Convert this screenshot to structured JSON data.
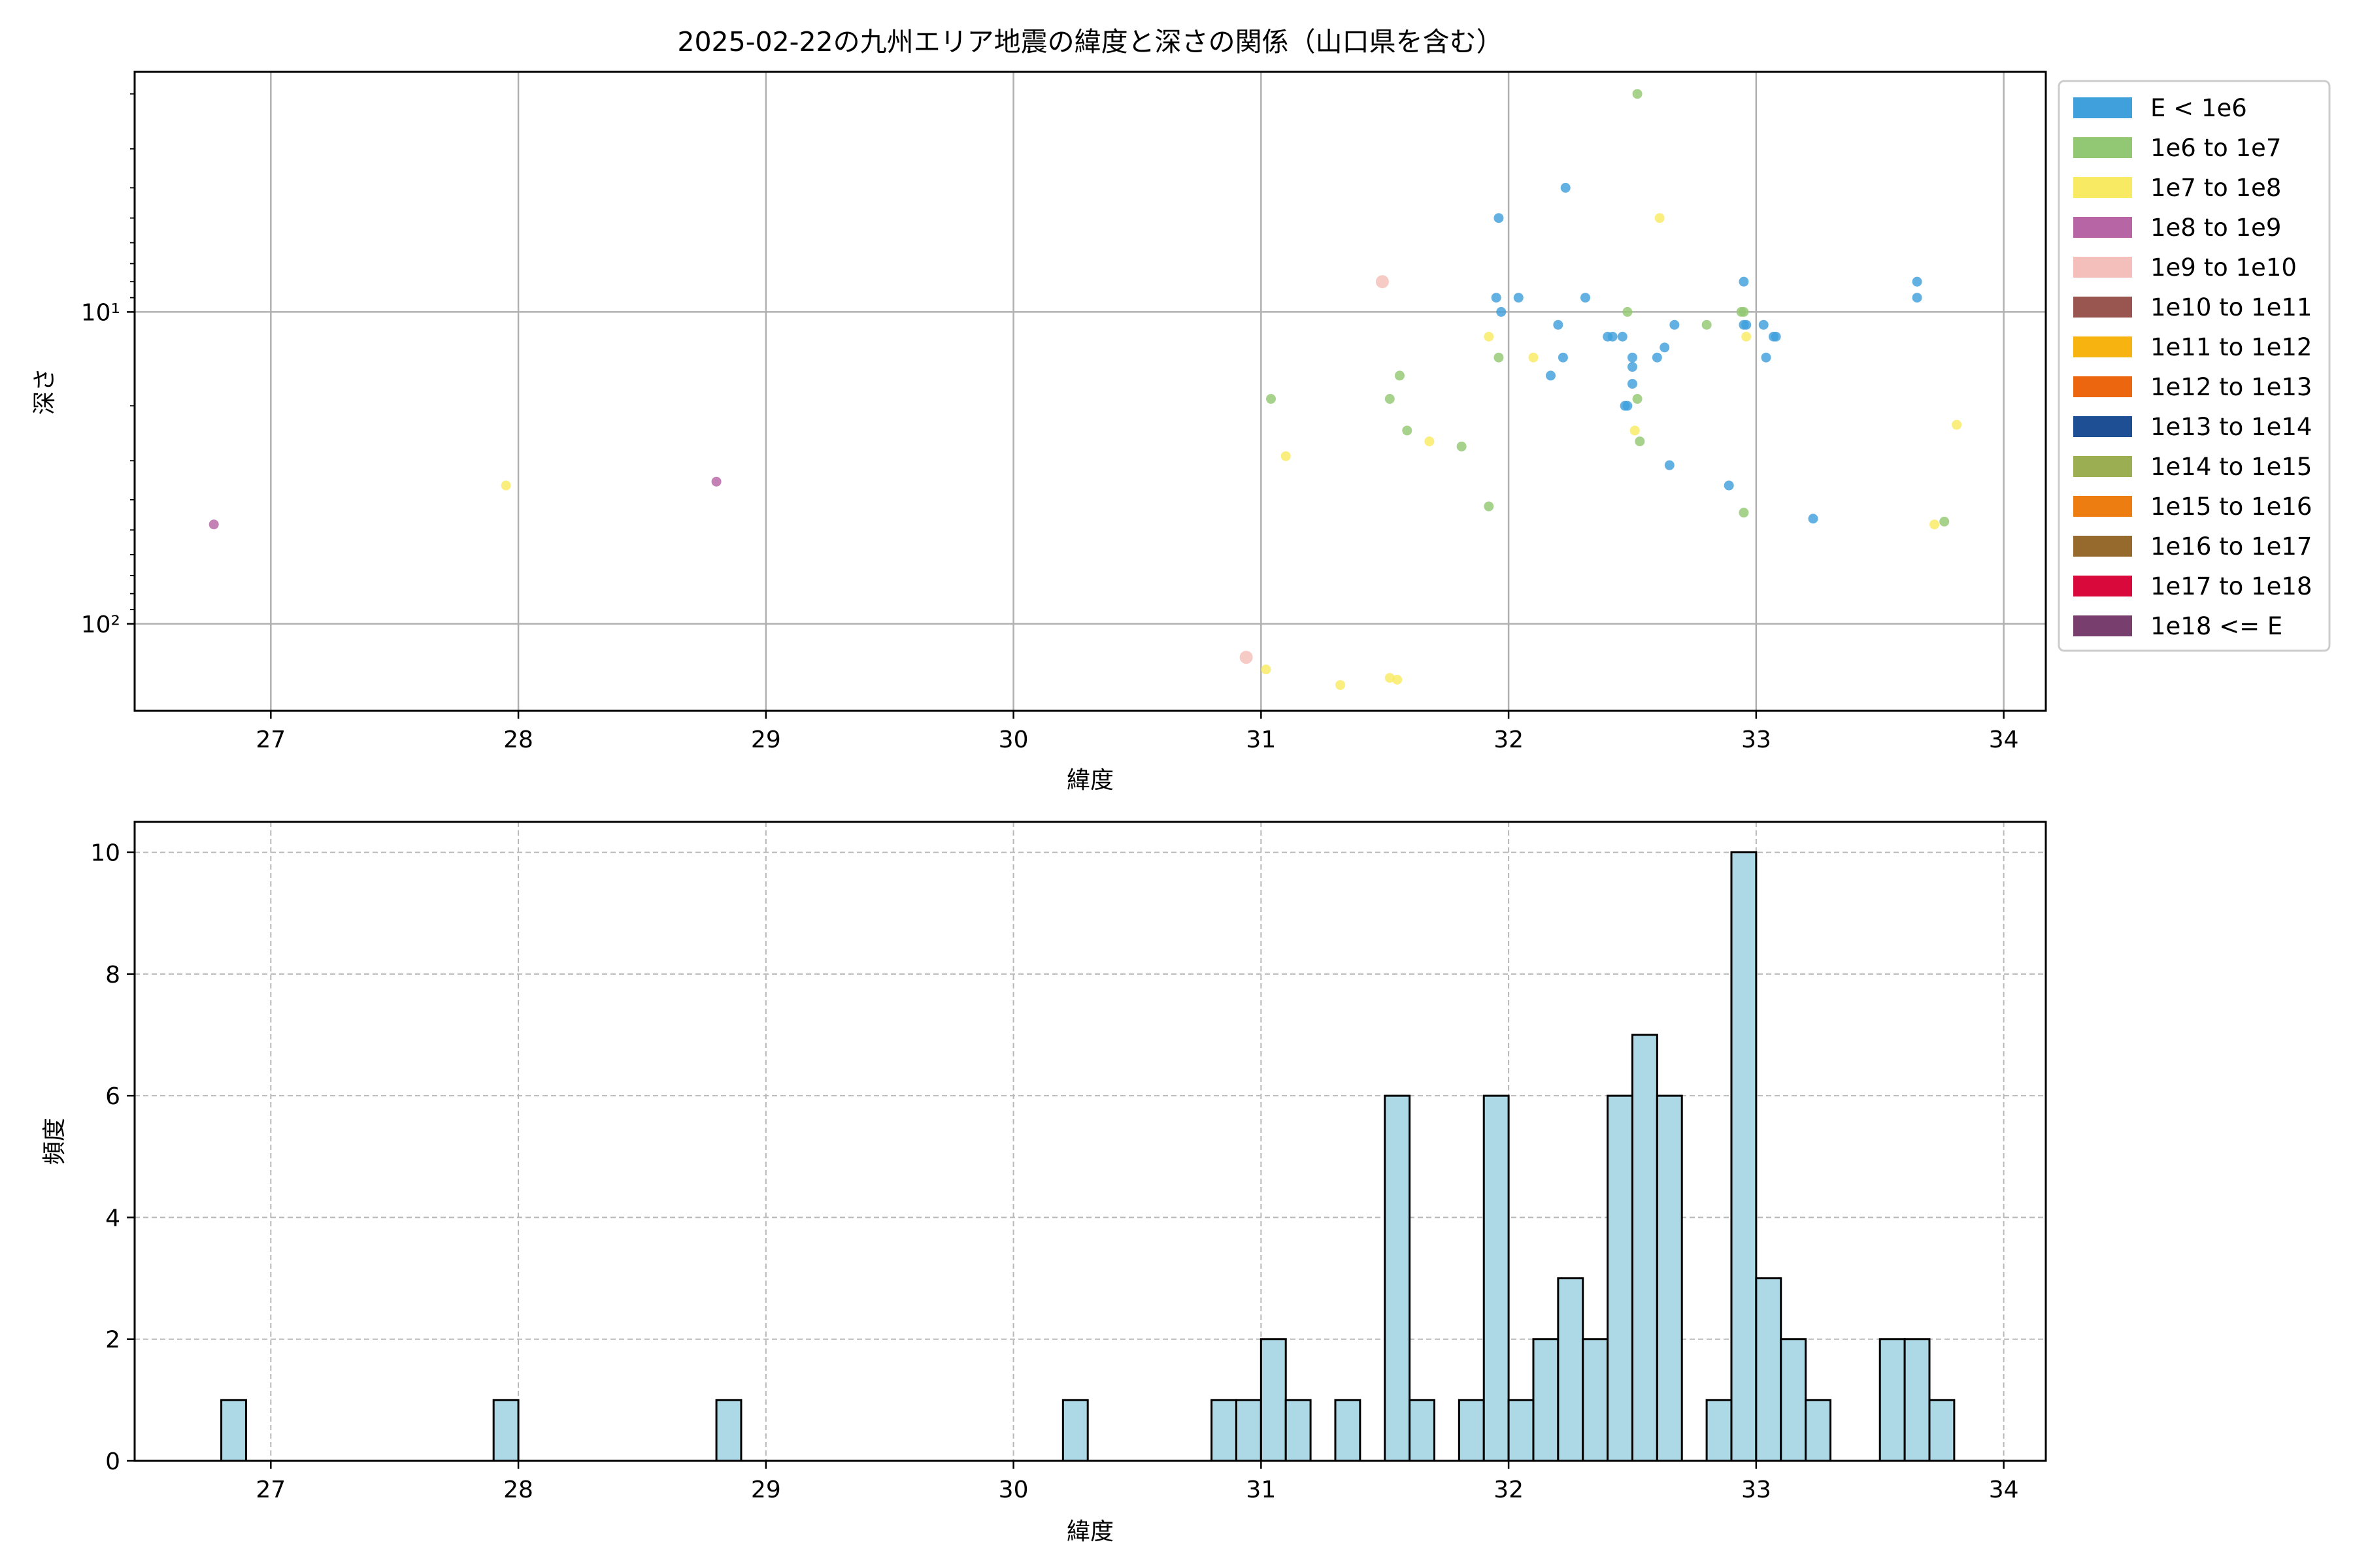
{
  "chart_data": [
    {
      "type": "scatter",
      "title": "2025-02-22の九州エリア地震の緯度と深さの関係（山口県を含む）",
      "xlabel": "緯度",
      "ylabel": "深さ",
      "xlim": [
        26.45,
        34.17
      ],
      "ylim": [
        190,
        1.7
      ],
      "yscale": "log",
      "y_inverted": true,
      "xticks": [
        27,
        28,
        29,
        30,
        31,
        32,
        33,
        34
      ],
      "yticks": [
        {
          "value": 10,
          "label": "10¹"
        },
        {
          "value": 100,
          "label": "10²"
        }
      ],
      "grid": true,
      "legend_position": "outside-right",
      "legend": [
        {
          "label": "E < 1e6",
          "color": "#3fa0dc"
        },
        {
          "label": "1e6 to 1e7",
          "color": "#92c873"
        },
        {
          "label": "1e7 to 1e8",
          "color": "#f9ea63"
        },
        {
          "label": "1e8 to 1e9",
          "color": "#b765a5"
        },
        {
          "label": "1e9 to 1e10",
          "color": "#f4bfba"
        },
        {
          "label": "1e10 to 1e11",
          "color": "#995550"
        },
        {
          "label": "1e11 to 1e12",
          "color": "#f7b30f"
        },
        {
          "label": "1e12 to 1e13",
          "color": "#ec650f"
        },
        {
          "label": "1e13 to 1e14",
          "color": "#1e4e94"
        },
        {
          "label": "1e14 to 1e15",
          "color": "#9cae52"
        },
        {
          "label": "1e15 to 1e16",
          "color": "#ee7d11"
        },
        {
          "label": "1e16 to 1e17",
          "color": "#956a2c"
        },
        {
          "label": "1e17 to 1e18",
          "color": "#d90a3b"
        },
        {
          "label": "1e18 <= E",
          "color": "#783f6e"
        }
      ],
      "series": [
        {
          "name": "E < 1e6",
          "color": "#3fa0dc",
          "points": [
            [
              31.95,
              9
            ],
            [
              31.97,
              10
            ],
            [
              31.96,
              5
            ],
            [
              32.04,
              9
            ],
            [
              32.23,
              4
            ],
            [
              32.31,
              9
            ],
            [
              32.2,
              11
            ],
            [
              32.22,
              14
            ],
            [
              32.17,
              16
            ],
            [
              32.4,
              12
            ],
            [
              32.42,
              12
            ],
            [
              32.46,
              12
            ],
            [
              32.5,
              14
            ],
            [
              32.5,
              15
            ],
            [
              32.5,
              17
            ],
            [
              32.47,
              20
            ],
            [
              32.48,
              20
            ],
            [
              32.6,
              14
            ],
            [
              32.63,
              13
            ],
            [
              32.67,
              11
            ],
            [
              32.65,
              31
            ],
            [
              32.89,
              36
            ],
            [
              32.95,
              8
            ],
            [
              32.95,
              11
            ],
            [
              32.96,
              11
            ],
            [
              33.03,
              11
            ],
            [
              33.04,
              14
            ],
            [
              33.07,
              12
            ],
            [
              33.08,
              12
            ],
            [
              33.23,
              46
            ],
            [
              33.65,
              8
            ],
            [
              33.65,
              9
            ]
          ]
        },
        {
          "name": "1e6 to 1e7",
          "color": "#92c873",
          "points": [
            [
              32.52,
              2
            ],
            [
              31.04,
              19
            ],
            [
              31.56,
              16
            ],
            [
              31.52,
              19
            ],
            [
              31.59,
              24
            ],
            [
              31.81,
              27
            ],
            [
              31.92,
              42
            ],
            [
              31.96,
              14
            ],
            [
              32.48,
              10
            ],
            [
              32.52,
              19
            ],
            [
              32.53,
              26
            ],
            [
              32.8,
              11
            ],
            [
              32.94,
              10
            ],
            [
              32.95,
              10
            ],
            [
              32.95,
              44
            ],
            [
              33.76,
              47
            ]
          ]
        },
        {
          "name": "1e7 to 1e8",
          "color": "#f9ea63",
          "points": [
            [
              27.95,
              36
            ],
            [
              31.1,
              29
            ],
            [
              31.02,
              140
            ],
            [
              31.32,
              157
            ],
            [
              31.52,
              149
            ],
            [
              31.55,
              151
            ],
            [
              31.68,
              26
            ],
            [
              31.92,
              12
            ],
            [
              32.1,
              14
            ],
            [
              32.51,
              24
            ],
            [
              32.61,
              5
            ],
            [
              32.96,
              12
            ],
            [
              33.72,
              48
            ],
            [
              33.81,
              23
            ]
          ]
        },
        {
          "name": "1e8 to 1e9",
          "color": "#b765a5",
          "points": [
            [
              26.77,
              48
            ],
            [
              28.8,
              35
            ]
          ]
        },
        {
          "name": "1e9 to 1e10",
          "color": "#f4bfba",
          "points": [
            [
              31.49,
              8
            ],
            [
              30.94,
              128
            ]
          ]
        }
      ]
    },
    {
      "type": "bar",
      "title": "",
      "xlabel": "緯度",
      "ylabel": "頻度",
      "xlim": [
        26.45,
        34.17
      ],
      "ylim": [
        0,
        10.5
      ],
      "xticks": [
        27,
        28,
        29,
        30,
        31,
        32,
        33,
        34
      ],
      "yticks": [
        0,
        2,
        4,
        6,
        8,
        10
      ],
      "grid": "dashed",
      "bar_color": "#add8e6",
      "bin_width": 0.1,
      "bins": [
        {
          "x": 26.8,
          "count": 1
        },
        {
          "x": 27.9,
          "count": 1
        },
        {
          "x": 28.8,
          "count": 1
        },
        {
          "x": 30.2,
          "count": 1
        },
        {
          "x": 30.8,
          "count": 1
        },
        {
          "x": 30.9,
          "count": 1
        },
        {
          "x": 31.0,
          "count": 2
        },
        {
          "x": 31.1,
          "count": 1
        },
        {
          "x": 31.3,
          "count": 1
        },
        {
          "x": 31.5,
          "count": 6
        },
        {
          "x": 31.6,
          "count": 1
        },
        {
          "x": 31.8,
          "count": 1
        },
        {
          "x": 31.9,
          "count": 6
        },
        {
          "x": 32.0,
          "count": 1
        },
        {
          "x": 32.1,
          "count": 2
        },
        {
          "x": 32.2,
          "count": 3
        },
        {
          "x": 32.3,
          "count": 2
        },
        {
          "x": 32.4,
          "count": 6
        },
        {
          "x": 32.5,
          "count": 7
        },
        {
          "x": 32.6,
          "count": 6
        },
        {
          "x": 32.8,
          "count": 1
        },
        {
          "x": 32.9,
          "count": 10
        },
        {
          "x": 33.0,
          "count": 3
        },
        {
          "x": 33.1,
          "count": 2
        },
        {
          "x": 33.2,
          "count": 1
        },
        {
          "x": 33.5,
          "count": 2
        },
        {
          "x": 33.6,
          "count": 2
        },
        {
          "x": 33.7,
          "count": 1
        }
      ]
    }
  ]
}
